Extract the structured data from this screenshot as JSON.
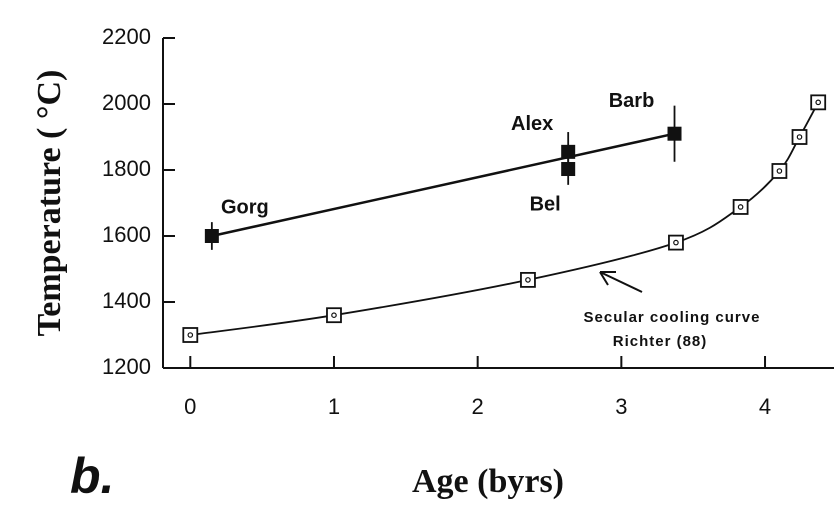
{
  "chart_data": {
    "type": "scatter",
    "xlabel": "Age (byrs)",
    "ylabel": "Temperature ( °C)",
    "panel_label": "b.",
    "xlim": [
      -0.19,
      4.48
    ],
    "ylim": [
      1200,
      2200
    ],
    "xticks": [
      0,
      1,
      2,
      3,
      4
    ],
    "yticks": [
      1200,
      1400,
      1600,
      1800,
      2000,
      2200
    ],
    "series": [
      {
        "labels": [
          "Gorg",
          "Alex",
          "Bel",
          "Barb"
        ],
        "x": [
          0.15,
          2.63,
          2.63,
          3.37
        ],
        "values": [
          1600,
          1855,
          1803,
          1910
        ],
        "errors": [
          42,
          60,
          48,
          85
        ],
        "marker": "filled-square",
        "line": "straight",
        "color": "#111111"
      },
      {
        "x": [
          0,
          1,
          2.35,
          3.38,
          3.83,
          4.1,
          4.24,
          4.37
        ],
        "values": [
          1300,
          1360,
          1467,
          1580,
          1688,
          1797,
          1900,
          2005
        ],
        "marker": "open-square",
        "line": "smooth",
        "color": "#111111"
      }
    ],
    "annotations": [
      {
        "text": "Secular cooling curve"
      },
      {
        "text": "Richter (88)"
      }
    ]
  }
}
